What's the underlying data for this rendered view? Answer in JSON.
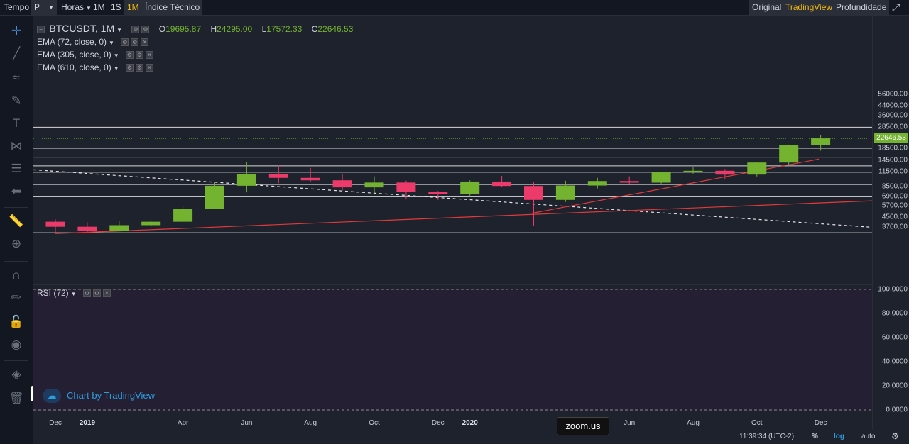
{
  "toolbar": {
    "tempo_label": "Tempo",
    "style_value": "P",
    "interval_dropdown": "Horas",
    "intervals": [
      "1M",
      "1S",
      "1M"
    ],
    "indicators_label": "Índice Técnico",
    "views": [
      "Original",
      "TradingView",
      "Profundidade"
    ]
  },
  "legend": {
    "symbol": "BTCUSDT, 1M",
    "ohlc": [
      {
        "label": "O",
        "value": "19695.87"
      },
      {
        "label": "H",
        "value": "24295.00"
      },
      {
        "label": "L",
        "value": "17572.33"
      },
      {
        "label": "C",
        "value": "22646.53"
      }
    ],
    "emas": [
      "EMA (72, close, 0)",
      "EMA (305, close, 0)",
      "EMA (610, close, 0)"
    ],
    "rsi": "RSI (72)"
  },
  "price_axis": {
    "ticks": [
      "56000.00",
      "44000.00",
      "36000.00",
      "28500.00",
      "22646.53",
      "18500.00",
      "14500.00",
      "11500.00",
      "8500.00",
      "6900.00",
      "5700.00",
      "4500.00",
      "3700.00"
    ],
    "current": "22646.53"
  },
  "rsi_axis": {
    "ticks": [
      "100.0000",
      "80.0000",
      "60.0000",
      "40.0000",
      "20.0000",
      "0.0000"
    ]
  },
  "time_axis": {
    "ticks": [
      "Dec",
      "2019",
      "Apr",
      "Jun",
      "Aug",
      "Oct",
      "Dec",
      "2020",
      "Apr",
      "Jun",
      "Aug",
      "Oct",
      "Dec"
    ]
  },
  "bottom": {
    "clock": "11:39:34 (UTC-2)",
    "percent": "%",
    "log": "log",
    "auto": "auto"
  },
  "attribution": "Chart by TradingView",
  "zoom_tooltip": "zoom.us",
  "colors": {
    "up": "#73b330",
    "down": "#ec3b6a",
    "background": "#1e222d",
    "rsi_background": "#251f33",
    "accent": "#f0b90b",
    "trendline": "#e03a3a"
  },
  "chart_data": {
    "type": "candlestick",
    "scale": "log",
    "interval": "1M",
    "x": [
      "2018-12",
      "2019-01",
      "2019-02",
      "2019-03",
      "2019-04",
      "2019-05",
      "2019-06",
      "2019-07",
      "2019-08",
      "2019-09",
      "2019-10",
      "2019-11",
      "2019-12",
      "2020-01",
      "2020-02",
      "2020-03",
      "2020-04",
      "2020-05",
      "2020-06",
      "2020-07",
      "2020-08",
      "2020-09",
      "2020-10",
      "2020-11",
      "2020-12"
    ],
    "open": [
      4100,
      3700,
      3420,
      3820,
      4100,
      5320,
      8580,
      10830,
      10080,
      9590,
      8300,
      9160,
      7540,
      7200,
      9350,
      8540,
      6420,
      8620,
      9450,
      9140,
      11340,
      11650,
      10780,
      13800,
      19700
    ],
    "high": [
      4300,
      4050,
      4200,
      4200,
      5700,
      9100,
      13900,
      13150,
      12350,
      10950,
      10400,
      9520,
      7700,
      9580,
      10500,
      9190,
      9500,
      10080,
      10400,
      11450,
      12480,
      12080,
      14000,
      19950,
      24300
    ],
    "low": [
      3220,
      3330,
      3360,
      3720,
      4080,
      5300,
      7500,
      9050,
      9350,
      7780,
      7330,
      6520,
      6420,
      6850,
      8430,
      3800,
      6150,
      8120,
      8900,
      8970,
      10980,
      9830,
      10380,
      13250,
      17570
    ],
    "close": [
      3700,
      3420,
      3820,
      4100,
      5320,
      8580,
      10830,
      10080,
      9590,
      8300,
      9160,
      7540,
      7200,
      9350,
      8540,
      6420,
      8620,
      9450,
      9140,
      11340,
      11650,
      10780,
      13800,
      19700,
      22650
    ],
    "ylim": [
      3200,
      60000
    ],
    "rsi_ylim": [
      0,
      100
    ]
  }
}
